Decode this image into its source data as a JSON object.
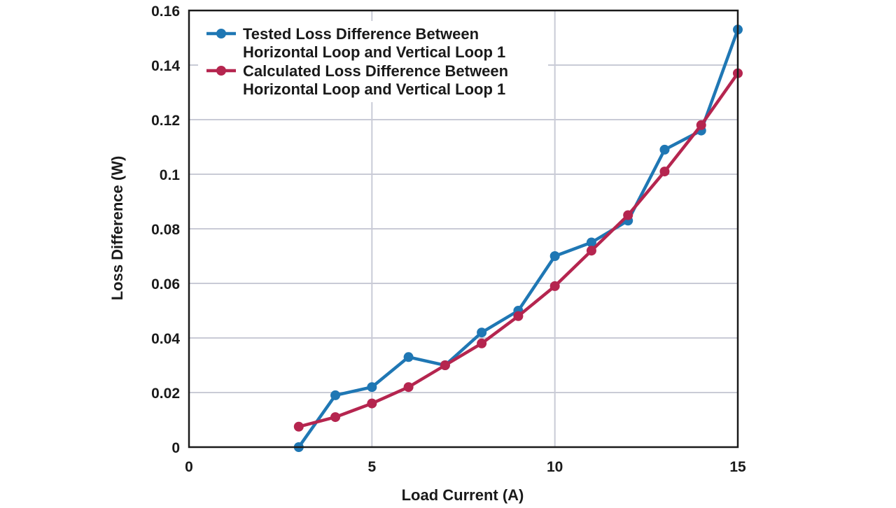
{
  "chart_data": {
    "type": "line",
    "xlabel": "Load Current (A)",
    "ylabel": "Loss Difference (W)",
    "xlim": [
      0,
      15
    ],
    "ylim": [
      0,
      0.16
    ],
    "x_ticks": [
      "0",
      "5",
      "10",
      "15"
    ],
    "y_ticks": [
      "0",
      "0.02",
      "0.04",
      "0.06",
      "0.08",
      "0.1",
      "0.12",
      "0.14",
      "0.16"
    ],
    "grid": true,
    "legend_position": "top-left",
    "series": [
      {
        "name_lines": [
          "Tested Loss Difference Between",
          "Horizontal Loop and Vertical Loop 1"
        ],
        "color": "#1f77b4",
        "x": [
          3,
          4,
          5,
          6,
          7,
          8,
          9,
          10,
          11,
          12,
          13,
          14,
          15
        ],
        "y": [
          0.0,
          0.019,
          0.022,
          0.033,
          0.03,
          0.042,
          0.05,
          0.07,
          0.075,
          0.083,
          0.109,
          0.116,
          0.153
        ]
      },
      {
        "name_lines": [
          "Calculated Loss Difference Between",
          "Horizontal Loop and Vertical Loop 1"
        ],
        "color": "#b5254f",
        "x": [
          3,
          4,
          5,
          6,
          7,
          8,
          9,
          10,
          11,
          12,
          13,
          14,
          15
        ],
        "y": [
          0.0075,
          0.011,
          0.016,
          0.022,
          0.03,
          0.038,
          0.048,
          0.059,
          0.072,
          0.085,
          0.101,
          0.118,
          0.137
        ]
      }
    ]
  }
}
